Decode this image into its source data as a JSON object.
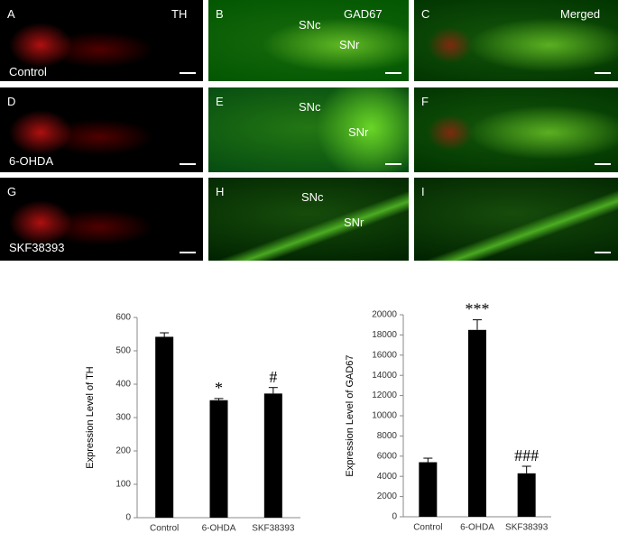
{
  "panels": [
    {
      "letter": "A",
      "texts": [
        "TH",
        "Control"
      ]
    },
    {
      "letter": "B",
      "texts": [
        "GAD67",
        "SNc",
        "SNr"
      ]
    },
    {
      "letter": "C",
      "texts": [
        "Merged"
      ]
    },
    {
      "letter": "D",
      "texts": [
        "6-OHDA"
      ]
    },
    {
      "letter": "E",
      "texts": [
        "SNc",
        "SNr"
      ]
    },
    {
      "letter": "F",
      "texts": []
    },
    {
      "letter": "G",
      "texts": [
        "SKF38393"
      ]
    },
    {
      "letter": "H",
      "texts": [
        "SNc",
        "SNr"
      ]
    },
    {
      "letter": "I",
      "texts": []
    }
  ],
  "chart_data": [
    {
      "type": "bar",
      "y_label": "Expression Level of TH",
      "categories": [
        "Control",
        "6-OHDA",
        "SKF38393"
      ],
      "values": [
        542,
        352,
        372
      ],
      "errors": [
        12,
        5,
        18
      ],
      "annotations": [
        null,
        "*",
        "#"
      ],
      "color": "#000000",
      "ylim": [
        0,
        600
      ],
      "yticks": [
        0,
        100,
        200,
        300,
        400,
        500,
        600
      ]
    },
    {
      "type": "bar",
      "y_label": "Expression Level of GAD67",
      "categories": [
        "Control",
        "6-OHDA",
        "SKF38393"
      ],
      "values": [
        5400,
        18500,
        4300
      ],
      "errors": [
        400,
        1000,
        700
      ],
      "annotations": [
        null,
        "***",
        "###"
      ],
      "color": "#000000",
      "ylim": [
        0,
        20000
      ],
      "yticks": [
        0,
        2000,
        4000,
        6000,
        8000,
        10000,
        12000,
        14000,
        16000,
        18000,
        20000
      ]
    }
  ]
}
